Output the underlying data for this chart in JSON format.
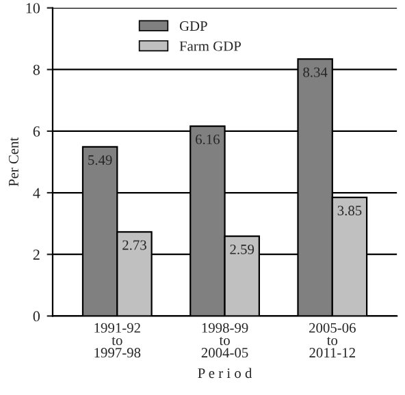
{
  "chart_data": {
    "type": "bar",
    "ylabel": "Per Cent",
    "xlabel": "P e r i o d",
    "categories": [
      "1991-92\nto\n1997-98",
      "1998-99\nto\n2004-05",
      "2005-06\nto\n2011-12"
    ],
    "series": [
      {
        "name": "GDP",
        "color": "#808080",
        "values": [
          5.49,
          6.16,
          8.34
        ]
      },
      {
        "name": "Farm GDP",
        "color": "#c0c0c0",
        "values": [
          2.73,
          2.59,
          3.85
        ]
      }
    ],
    "ylim": [
      0,
      10
    ],
    "yticks": [
      0,
      2,
      4,
      6,
      8,
      10
    ],
    "grid": "y",
    "legend": "top",
    "data_labels": true
  }
}
